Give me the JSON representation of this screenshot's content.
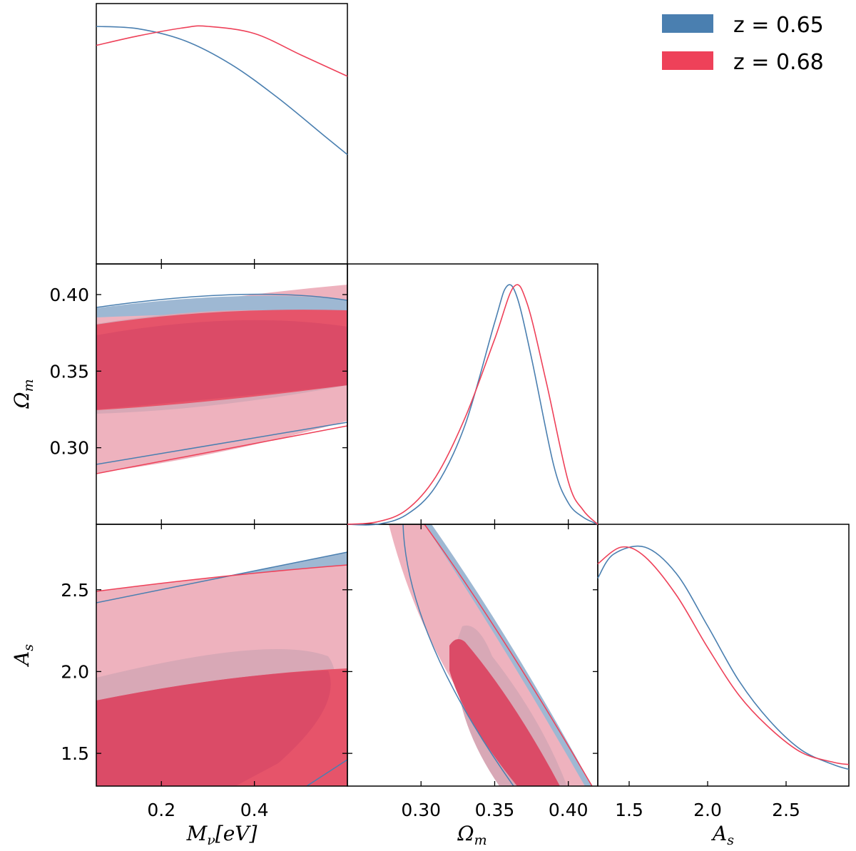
{
  "colors": {
    "blue": "#4a7fb0",
    "red": "#ee4159",
    "blue_fill": "#9eb8d3",
    "red_fill_outer": "#eeb2be",
    "red_fill_inner": "#db4b67",
    "red_bright": "#e6546a",
    "blue_inner": "#d8a8b6"
  },
  "legend": [
    {
      "label": "z = 0.65",
      "color": "#4a7fb0"
    },
    {
      "label": "z = 0.68",
      "color": "#ee4159"
    }
  ],
  "chart_data": {
    "type": "corner",
    "parameters": [
      {
        "name": "M_nu",
        "label_main": "M",
        "label_sub": "ν",
        "label_suffix": "[eV]",
        "range": [
          0.06,
          0.6
        ],
        "ticks": [
          0.2,
          0.4
        ],
        "tick_labels": [
          "0.2",
          "0.4"
        ]
      },
      {
        "name": "Omega_m",
        "label_main": "Ω",
        "label_sub": "m",
        "label_suffix": "",
        "range": [
          0.25,
          0.42
        ],
        "ticks": [
          0.3,
          0.35,
          0.4
        ],
        "tick_labels": [
          "0.30",
          "0.35",
          "0.40"
        ]
      },
      {
        "name": "A_s",
        "label_main": "A",
        "label_sub": "s",
        "label_suffix": "",
        "range": [
          1.3,
          2.9
        ],
        "ticks": [
          1.5,
          2.0,
          2.5
        ],
        "tick_labels": [
          "1.5",
          "2.0",
          "2.5"
        ]
      }
    ],
    "series": [
      {
        "name": "z = 0.65",
        "marginals": {
          "M_nu": [
            [
              0.06,
              1.0
            ],
            [
              0.15,
              0.99
            ],
            [
              0.25,
              0.94
            ],
            [
              0.35,
              0.84
            ],
            [
              0.45,
              0.7
            ],
            [
              0.55,
              0.54
            ],
            [
              0.6,
              0.46
            ]
          ],
          "Omega_m": [
            [
              0.25,
              0.0
            ],
            [
              0.27,
              0.0
            ],
            [
              0.29,
              0.04
            ],
            [
              0.31,
              0.16
            ],
            [
              0.33,
              0.42
            ],
            [
              0.35,
              0.85
            ],
            [
              0.358,
              1.0
            ],
            [
              0.365,
              0.96
            ],
            [
              0.375,
              0.7
            ],
            [
              0.39,
              0.25
            ],
            [
              0.4,
              0.09
            ],
            [
              0.41,
              0.03
            ],
            [
              0.42,
              0.0
            ]
          ],
          "A_s": [
            [
              1.3,
              0.87
            ],
            [
              1.4,
              0.97
            ],
            [
              1.6,
              1.0
            ],
            [
              1.8,
              0.89
            ],
            [
              2.0,
              0.67
            ],
            [
              2.2,
              0.44
            ],
            [
              2.4,
              0.27
            ],
            [
              2.6,
              0.15
            ],
            [
              2.8,
              0.09
            ],
            [
              2.9,
              0.07
            ]
          ]
        },
        "contours_2sigma_edges": {
          "Omega_m_vs_M_nu": {
            "upper": [
              [
                0.06,
                0.39
              ],
              [
                0.45,
                0.4
              ],
              [
                0.6,
                0.396
              ]
            ],
            "lower": [
              [
                0.06,
                0.289
              ],
              [
                0.6,
                0.317
              ]
            ]
          },
          "A_s_vs_M_nu": {
            "upper": [
              [
                0.06,
                2.42
              ],
              [
                0.3,
                2.56
              ],
              [
                0.6,
                2.74
              ]
            ]
          }
        }
      },
      {
        "name": "z = 0.68",
        "marginals": {
          "M_nu": [
            [
              0.06,
              0.92
            ],
            [
              0.15,
              0.96
            ],
            [
              0.25,
              0.995
            ],
            [
              0.3,
              1.0
            ],
            [
              0.4,
              0.97
            ],
            [
              0.5,
              0.88
            ],
            [
              0.6,
              0.79
            ]
          ],
          "Omega_m": [
            [
              0.25,
              0.0
            ],
            [
              0.27,
              0.01
            ],
            [
              0.29,
              0.06
            ],
            [
              0.31,
              0.2
            ],
            [
              0.33,
              0.45
            ],
            [
              0.35,
              0.78
            ],
            [
              0.363,
              1.0
            ],
            [
              0.372,
              0.93
            ],
            [
              0.385,
              0.6
            ],
            [
              0.4,
              0.18
            ],
            [
              0.41,
              0.06
            ],
            [
              0.42,
              0.0
            ]
          ],
          "A_s": [
            [
              1.3,
              0.93
            ],
            [
              1.45,
              1.0
            ],
            [
              1.6,
              0.96
            ],
            [
              1.8,
              0.8
            ],
            [
              2.0,
              0.58
            ],
            [
              2.2,
              0.38
            ],
            [
              2.4,
              0.24
            ],
            [
              2.6,
              0.14
            ],
            [
              2.8,
              0.1
            ],
            [
              2.9,
              0.09
            ]
          ]
        },
        "contours_2sigma_edges": {
          "Omega_m_vs_M_nu": {
            "upper": [
              [
                0.06,
                0.383
              ],
              [
                0.6,
                0.407
              ]
            ],
            "lower": [
              [
                0.06,
                0.283
              ],
              [
                0.6,
                0.314
              ]
            ]
          },
          "A_s_vs_M_nu": {
            "upper": [
              [
                0.06,
                2.49
              ],
              [
                0.6,
                2.66
              ]
            ]
          }
        }
      }
    ]
  }
}
